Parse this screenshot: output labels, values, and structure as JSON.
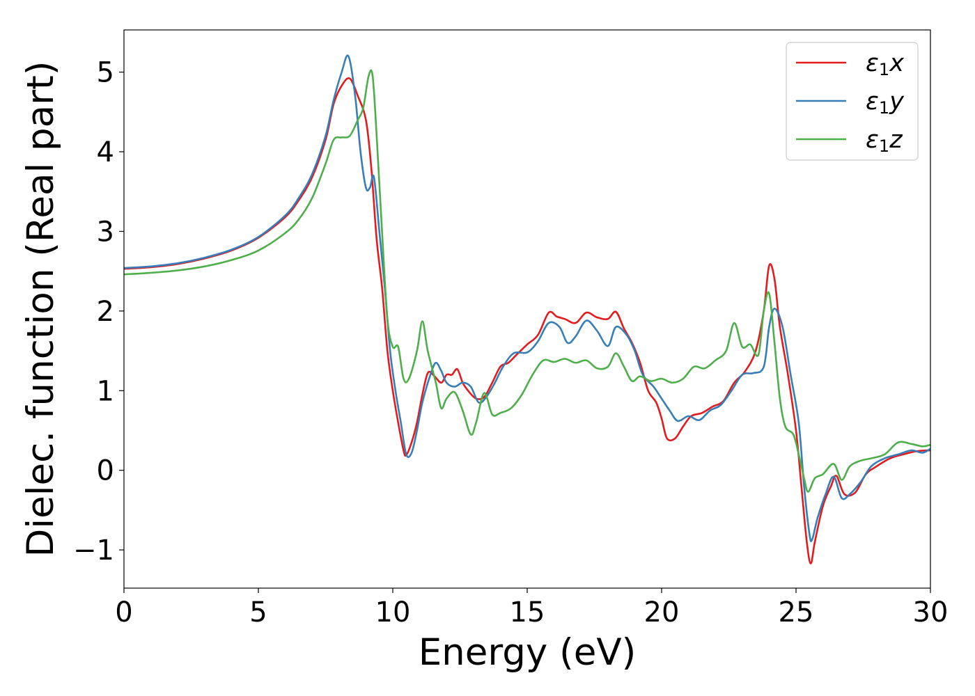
{
  "chart_data": {
    "type": "line",
    "xlabel": "Energy (eV)",
    "ylabel": "Dielec. function (Real part)",
    "xlim": [
      0,
      30
    ],
    "ylim": [
      -1.48,
      5.53
    ],
    "xticks": [
      0,
      5,
      10,
      15,
      20,
      25,
      30
    ],
    "yticks": [
      -1,
      0,
      1,
      2,
      3,
      4,
      5
    ],
    "xtick_labels": [
      "0",
      "5",
      "10",
      "15",
      "20",
      "25",
      "30"
    ],
    "ytick_labels": [
      "−1",
      "0",
      "1",
      "2",
      "3",
      "4",
      "5"
    ],
    "grid": false,
    "legend": {
      "position": "top-right"
    },
    "series": [
      {
        "name": "ε",
        "subscript": "1",
        "suffix": "x",
        "color": "#e41a1c",
        "points": [
          [
            0,
            2.53
          ],
          [
            1,
            2.55
          ],
          [
            2,
            2.59
          ],
          [
            3,
            2.66
          ],
          [
            4,
            2.76
          ],
          [
            5,
            2.92
          ],
          [
            6,
            3.18
          ],
          [
            6.5,
            3.39
          ],
          [
            7,
            3.68
          ],
          [
            7.5,
            4.15
          ],
          [
            7.8,
            4.6
          ],
          [
            8.1,
            4.83
          ],
          [
            8.4,
            4.92
          ],
          [
            8.7,
            4.7
          ],
          [
            9.0,
            4.4
          ],
          [
            9.2,
            3.8
          ],
          [
            9.4,
            2.9
          ],
          [
            9.6,
            2.3
          ],
          [
            9.8,
            1.5
          ],
          [
            10.0,
            1.0
          ],
          [
            10.2,
            0.6
          ],
          [
            10.4,
            0.25
          ],
          [
            10.5,
            0.19
          ],
          [
            10.7,
            0.35
          ],
          [
            10.9,
            0.6
          ],
          [
            11.1,
            0.95
          ],
          [
            11.3,
            1.22
          ],
          [
            11.5,
            1.2
          ],
          [
            11.8,
            1.1
          ],
          [
            12.0,
            1.2
          ],
          [
            12.2,
            1.2
          ],
          [
            12.4,
            1.27
          ],
          [
            12.6,
            1.1
          ],
          [
            12.8,
            1.0
          ],
          [
            13.1,
            0.9
          ],
          [
            13.4,
            0.92
          ],
          [
            13.7,
            1.1
          ],
          [
            14.0,
            1.3
          ],
          [
            14.3,
            1.35
          ],
          [
            14.6,
            1.45
          ],
          [
            15.0,
            1.58
          ],
          [
            15.4,
            1.7
          ],
          [
            15.8,
            1.98
          ],
          [
            16.1,
            1.93
          ],
          [
            16.4,
            1.9
          ],
          [
            16.8,
            1.85
          ],
          [
            17.2,
            1.98
          ],
          [
            17.6,
            1.92
          ],
          [
            18.0,
            1.9
          ],
          [
            18.3,
            1.99
          ],
          [
            18.6,
            1.78
          ],
          [
            18.9,
            1.6
          ],
          [
            19.2,
            1.35
          ],
          [
            19.5,
            1.0
          ],
          [
            19.8,
            0.85
          ],
          [
            20.0,
            0.65
          ],
          [
            20.2,
            0.4
          ],
          [
            20.5,
            0.4
          ],
          [
            20.8,
            0.55
          ],
          [
            21.1,
            0.68
          ],
          [
            21.5,
            0.72
          ],
          [
            21.9,
            0.8
          ],
          [
            22.3,
            0.87
          ],
          [
            22.7,
            1.1
          ],
          [
            23.1,
            1.24
          ],
          [
            23.5,
            1.5
          ],
          [
            23.8,
            2.0
          ],
          [
            24.0,
            2.57
          ],
          [
            24.2,
            2.4
          ],
          [
            24.4,
            1.8
          ],
          [
            24.7,
            1.2
          ],
          [
            25.0,
            0.5
          ],
          [
            25.2,
            -0.2
          ],
          [
            25.4,
            -0.9
          ],
          [
            25.55,
            -1.17
          ],
          [
            25.7,
            -0.9
          ],
          [
            26.0,
            -0.45
          ],
          [
            26.3,
            -0.2
          ],
          [
            26.5,
            -0.07
          ],
          [
            26.8,
            -0.3
          ],
          [
            27.2,
            -0.28
          ],
          [
            27.6,
            -0.05
          ],
          [
            28.0,
            0.05
          ],
          [
            28.5,
            0.15
          ],
          [
            29.0,
            0.2
          ],
          [
            29.5,
            0.24
          ],
          [
            30.0,
            0.25
          ]
        ]
      },
      {
        "name": "ε",
        "subscript": "1",
        "suffix": "y",
        "color": "#377eb8",
        "points": [
          [
            0,
            2.54
          ],
          [
            1,
            2.56
          ],
          [
            2,
            2.6
          ],
          [
            3,
            2.67
          ],
          [
            4,
            2.77
          ],
          [
            5,
            2.93
          ],
          [
            6,
            3.2
          ],
          [
            6.5,
            3.42
          ],
          [
            7,
            3.72
          ],
          [
            7.5,
            4.2
          ],
          [
            7.8,
            4.65
          ],
          [
            8.1,
            5.0
          ],
          [
            8.35,
            5.2
          ],
          [
            8.6,
            4.7
          ],
          [
            8.8,
            4.0
          ],
          [
            9.0,
            3.55
          ],
          [
            9.15,
            3.55
          ],
          [
            9.3,
            3.68
          ],
          [
            9.5,
            3.0
          ],
          [
            9.7,
            2.3
          ],
          [
            9.9,
            1.5
          ],
          [
            10.1,
            1.0
          ],
          [
            10.3,
            0.6
          ],
          [
            10.5,
            0.2
          ],
          [
            10.7,
            0.22
          ],
          [
            10.9,
            0.5
          ],
          [
            11.1,
            0.85
          ],
          [
            11.4,
            1.2
          ],
          [
            11.6,
            1.35
          ],
          [
            11.8,
            1.25
          ],
          [
            12.0,
            1.1
          ],
          [
            12.3,
            1.05
          ],
          [
            12.6,
            1.1
          ],
          [
            12.9,
            1.05
          ],
          [
            13.2,
            0.85
          ],
          [
            13.5,
            0.93
          ],
          [
            13.8,
            1.1
          ],
          [
            14.1,
            1.3
          ],
          [
            14.5,
            1.47
          ],
          [
            15.0,
            1.48
          ],
          [
            15.4,
            1.62
          ],
          [
            15.8,
            1.85
          ],
          [
            16.2,
            1.8
          ],
          [
            16.5,
            1.6
          ],
          [
            16.8,
            1.68
          ],
          [
            17.2,
            1.88
          ],
          [
            17.6,
            1.75
          ],
          [
            18.0,
            1.56
          ],
          [
            18.3,
            1.8
          ],
          [
            18.7,
            1.7
          ],
          [
            19.0,
            1.5
          ],
          [
            19.3,
            1.2
          ],
          [
            19.7,
            1.05
          ],
          [
            20.0,
            0.9
          ],
          [
            20.3,
            0.75
          ],
          [
            20.6,
            0.62
          ],
          [
            21.0,
            0.68
          ],
          [
            21.4,
            0.63
          ],
          [
            21.8,
            0.75
          ],
          [
            22.2,
            0.82
          ],
          [
            22.6,
            1.0
          ],
          [
            23.0,
            1.2
          ],
          [
            23.4,
            1.22
          ],
          [
            23.8,
            1.3
          ],
          [
            24.0,
            1.8
          ],
          [
            24.2,
            2.03
          ],
          [
            24.5,
            1.8
          ],
          [
            24.8,
            1.2
          ],
          [
            25.1,
            0.6
          ],
          [
            25.3,
            -0.2
          ],
          [
            25.5,
            -0.8
          ],
          [
            25.6,
            -0.87
          ],
          [
            25.8,
            -0.6
          ],
          [
            26.1,
            -0.3
          ],
          [
            26.4,
            -0.08
          ],
          [
            26.7,
            -0.35
          ],
          [
            27.0,
            -0.3
          ],
          [
            27.4,
            -0.15
          ],
          [
            27.8,
            0.05
          ],
          [
            28.3,
            0.15
          ],
          [
            28.8,
            0.2
          ],
          [
            29.3,
            0.25
          ],
          [
            29.7,
            0.22
          ],
          [
            30.0,
            0.27
          ]
        ]
      },
      {
        "name": "ε",
        "subscript": "1",
        "suffix": "z",
        "color": "#4daf4a",
        "points": [
          [
            0,
            2.46
          ],
          [
            1,
            2.48
          ],
          [
            2,
            2.51
          ],
          [
            3,
            2.56
          ],
          [
            4,
            2.64
          ],
          [
            5,
            2.76
          ],
          [
            6,
            2.98
          ],
          [
            6.5,
            3.15
          ],
          [
            7,
            3.42
          ],
          [
            7.5,
            3.85
          ],
          [
            7.8,
            4.15
          ],
          [
            8.1,
            4.18
          ],
          [
            8.4,
            4.2
          ],
          [
            8.7,
            4.4
          ],
          [
            8.9,
            4.55
          ],
          [
            9.1,
            4.95
          ],
          [
            9.25,
            4.95
          ],
          [
            9.4,
            4.2
          ],
          [
            9.6,
            3.0
          ],
          [
            9.8,
            1.9
          ],
          [
            10.0,
            1.55
          ],
          [
            10.2,
            1.55
          ],
          [
            10.4,
            1.15
          ],
          [
            10.6,
            1.15
          ],
          [
            10.9,
            1.5
          ],
          [
            11.1,
            1.87
          ],
          [
            11.3,
            1.5
          ],
          [
            11.6,
            1.1
          ],
          [
            11.8,
            0.78
          ],
          [
            12.0,
            0.9
          ],
          [
            12.3,
            0.98
          ],
          [
            12.6,
            0.75
          ],
          [
            12.9,
            0.45
          ],
          [
            13.1,
            0.6
          ],
          [
            13.4,
            0.97
          ],
          [
            13.7,
            0.7
          ],
          [
            14.0,
            0.72
          ],
          [
            14.4,
            0.78
          ],
          [
            14.8,
            0.95
          ],
          [
            15.2,
            1.2
          ],
          [
            15.6,
            1.38
          ],
          [
            16.0,
            1.36
          ],
          [
            16.4,
            1.4
          ],
          [
            16.8,
            1.35
          ],
          [
            17.2,
            1.38
          ],
          [
            17.6,
            1.28
          ],
          [
            18.0,
            1.3
          ],
          [
            18.3,
            1.47
          ],
          [
            18.6,
            1.3
          ],
          [
            18.9,
            1.12
          ],
          [
            19.2,
            1.18
          ],
          [
            19.6,
            1.12
          ],
          [
            20.0,
            1.15
          ],
          [
            20.4,
            1.1
          ],
          [
            20.8,
            1.15
          ],
          [
            21.2,
            1.3
          ],
          [
            21.6,
            1.28
          ],
          [
            22.0,
            1.38
          ],
          [
            22.4,
            1.5
          ],
          [
            22.7,
            1.85
          ],
          [
            23.0,
            1.55
          ],
          [
            23.3,
            1.58
          ],
          [
            23.6,
            1.45
          ],
          [
            23.8,
            2.0
          ],
          [
            24.0,
            2.22
          ],
          [
            24.2,
            1.6
          ],
          [
            24.4,
            0.9
          ],
          [
            24.6,
            0.55
          ],
          [
            24.9,
            0.45
          ],
          [
            25.1,
            0.2
          ],
          [
            25.3,
            -0.1
          ],
          [
            25.45,
            -0.27
          ],
          [
            25.7,
            -0.1
          ],
          [
            26.0,
            -0.05
          ],
          [
            26.4,
            0.08
          ],
          [
            26.7,
            -0.12
          ],
          [
            27.0,
            0.05
          ],
          [
            27.4,
            0.12
          ],
          [
            27.8,
            0.15
          ],
          [
            28.3,
            0.2
          ],
          [
            28.8,
            0.35
          ],
          [
            29.3,
            0.33
          ],
          [
            29.7,
            0.3
          ],
          [
            30.0,
            0.32
          ]
        ]
      }
    ]
  }
}
